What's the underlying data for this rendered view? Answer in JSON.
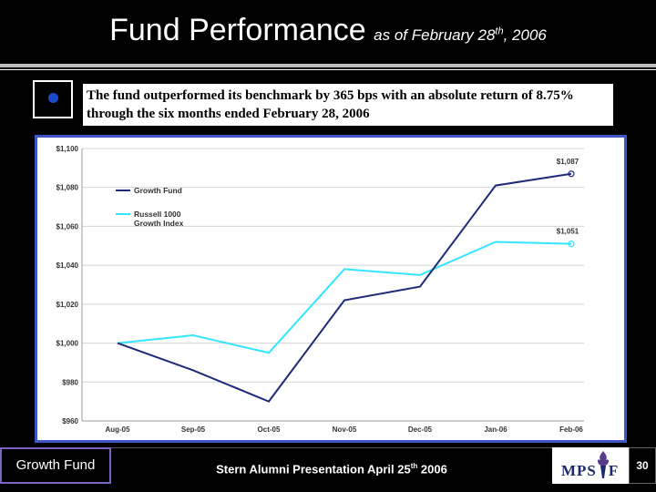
{
  "title": {
    "main": "Fund Performance",
    "sub_prefix": "as of February 28",
    "sub_sup": "th",
    "sub_suffix": ", 2006"
  },
  "headline": "The fund outperformed its benchmark by 365 bps with an absolute return of 8.75% through the six months ended February 28, 2006",
  "colors": {
    "growth_fund": "#1f2a78",
    "russell": "#33e6ff",
    "frame": "#3f56c7",
    "bullet": "#1a49c9"
  },
  "chart_data": {
    "type": "line",
    "categories": [
      "Aug-05",
      "Sep-05",
      "Oct-05",
      "Nov-05",
      "Dec-05",
      "Jan-06",
      "Feb-06"
    ],
    "y_tick_labels": [
      "$960",
      "$980",
      "$1,000",
      "$1,020",
      "$1,040",
      "$1,060",
      "$1,080",
      "$1,100"
    ],
    "y_tick_values": [
      960,
      980,
      1000,
      1020,
      1040,
      1060,
      1080,
      1100
    ],
    "ylim": [
      960,
      1100
    ],
    "grid": true,
    "legend_position": "top-left",
    "series": [
      {
        "name": "Growth Fund",
        "color": "#1f2a78",
        "values": [
          1000,
          986,
          970,
          1022,
          1029,
          1081,
          1087
        ]
      },
      {
        "name": "Russell 1000 Growth Index",
        "color": "#33e6ff",
        "values": [
          1000,
          1004,
          995,
          1038,
          1035,
          1052,
          1051
        ]
      }
    ],
    "legend_labels": [
      [
        "Growth Fund"
      ],
      [
        "Russell 1000",
        "Growth Index"
      ]
    ],
    "end_labels": [
      "$1,087",
      "$1,051"
    ]
  },
  "footer": {
    "left_label": "Growth Fund",
    "presentation_prefix": "Stern Alumni Presentation April 25",
    "presentation_sup": "th",
    "presentation_suffix": " 2006",
    "logo_text": "MPS",
    "logo_text_end": "F",
    "page_number": "30"
  }
}
